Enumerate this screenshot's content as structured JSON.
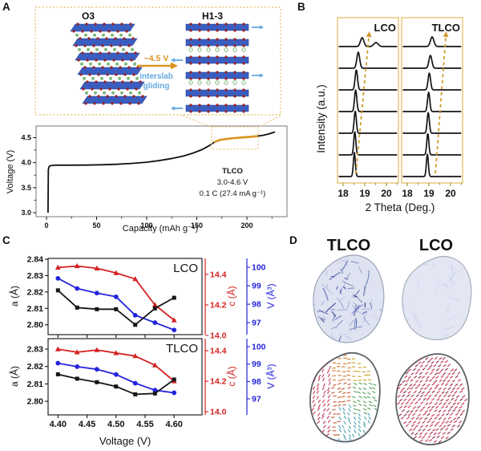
{
  "colors": {
    "accent_orange": "#d9931f",
    "dash_box_tan": "#e7c87c",
    "xrd_arrow_gold": "#cf9b2e",
    "slab_blue": "#3a5ec0",
    "slab_edge": "#26408f",
    "dot_red": "#9c1f1f",
    "dot_green": "#7db97d",
    "glide_blue": "#64a8e0",
    "series_black": "#161616",
    "series_red": "#d42222",
    "series_blue": "#2424dd",
    "map_fill_tlco": "#dfe3f1",
    "map_fill_lco": "#e3e6f3",
    "stripe_red": "#c22c50"
  },
  "panel_a": {
    "label": "A",
    "phase_left": "O3",
    "phase_right": "H1-3",
    "arrow_label": "~4.5 V",
    "glide_line1": "interslab",
    "glide_line2": "gliding"
  },
  "panel_b": {
    "label": "B"
  },
  "panel_c": {
    "label": "C"
  },
  "panel_d": {
    "label": "D",
    "left_title": "TLCO",
    "right_title": "LCO"
  },
  "chart_data": [
    {
      "id": "charge_curve",
      "panel": "A",
      "type": "line",
      "xlabel": "Capacity (mAh g⁻¹)",
      "ylabel": "Voltage (V)",
      "xlim": [
        -10.4,
        240
      ],
      "ylim": [
        2.92,
        4.81
      ],
      "xticks": [
        0,
        50,
        100,
        150,
        200
      ],
      "xtick_labels": [
        "0",
        "50",
        "100",
        "150",
        "200"
      ],
      "xticks_minor": [
        25,
        75,
        125,
        175,
        225
      ],
      "yticks": [
        3.0,
        3.5,
        4.0,
        4.5
      ],
      "ytick_labels": [
        "3.0",
        "3.5",
        "4.0",
        "4.5"
      ],
      "yticks_minor": [
        3.25,
        3.75,
        4.25
      ],
      "series": [
        {
          "name": "TLCO charge curve",
          "x": [
            1.5,
            1.8,
            2.5,
            4,
            8,
            15,
            25,
            40,
            55,
            70,
            85,
            100,
            112,
            124,
            136,
            146,
            155,
            162,
            168,
            173,
            180,
            188,
            196,
            204,
            210,
            216,
            222,
            228
          ],
          "y": [
            3.0,
            3.86,
            3.92,
            3.94,
            3.948,
            3.95,
            3.95,
            3.952,
            3.958,
            3.968,
            3.985,
            4.01,
            4.04,
            4.08,
            4.13,
            4.19,
            4.26,
            4.335,
            4.415,
            4.455,
            4.475,
            4.492,
            4.505,
            4.518,
            4.53,
            4.548,
            4.575,
            4.615
          ]
        }
      ],
      "highlight_x": [
        170,
        208
      ],
      "annotations": [
        "TLCO",
        "3.0-4.6 V",
        "0.1 C (27.4 mA g⁻¹)"
      ]
    },
    {
      "id": "xrd",
      "panel": "B",
      "type": "line",
      "xlabel": "2 Theta (Deg.)",
      "ylabel": "Intensity (a.u.)",
      "subpanels": [
        {
          "label": "LCO",
          "xticks": [
            18,
            19,
            20
          ],
          "xtick_labels": [
            "18",
            "19",
            "20"
          ],
          "curves_bottom_to_top": [
            {
              "peaks": [
                [
                  18.52,
                  30,
                  0.045
                ]
              ]
            },
            {
              "peaks": [
                [
                  18.54,
                  29,
                  0.047
                ]
              ]
            },
            {
              "peaks": [
                [
                  18.56,
                  28,
                  0.05
                ]
              ]
            },
            {
              "peaks": [
                [
                  18.58,
                  27,
                  0.052
                ]
              ]
            },
            {
              "peaks": [
                [
                  18.61,
                  25,
                  0.055
                ]
              ]
            },
            {
              "peaks": [
                [
                  18.7,
                  20,
                  0.065
                ]
              ]
            },
            {
              "peaks": [
                [
                  18.88,
                  11,
                  0.08
                ],
                [
                  19.52,
                  5,
                  0.1
                ]
              ]
            }
          ],
          "arrow_theta": [
            18.59,
            19.19
          ]
        },
        {
          "label": "TLCO",
          "xticks": [
            18,
            19,
            20
          ],
          "xtick_labels": [
            "18",
            "19",
            "20"
          ],
          "curves_bottom_to_top": [
            {
              "peaks": [
                [
                  18.93,
                  28,
                  0.045
                ]
              ]
            },
            {
              "peaks": [
                [
                  18.95,
                  27,
                  0.047
                ]
              ]
            },
            {
              "peaks": [
                [
                  18.97,
                  26,
                  0.05
                ]
              ]
            },
            {
              "peaks": [
                [
                  18.99,
                  24,
                  0.052
                ]
              ]
            },
            {
              "peaks": [
                [
                  19.02,
                  21,
                  0.057
                ]
              ]
            },
            {
              "peaks": [
                [
                  19.07,
                  16,
                  0.068
                ]
              ]
            },
            {
              "peaks": [
                [
                  19.15,
                  12,
                  0.08
                ]
              ]
            }
          ],
          "arrow_theta": [
            19.3,
            19.78
          ]
        }
      ]
    },
    {
      "id": "lattice_lco",
      "panel": "C",
      "type": "line",
      "title": "LCO",
      "x": [
        4.4,
        4.433,
        4.467,
        4.5,
        4.533,
        4.567,
        4.6
      ],
      "xlim": [
        4.383,
        4.648
      ],
      "series": [
        {
          "name": "a",
          "label": "a (Å)",
          "marker": "square",
          "color_key": "series_black",
          "values": [
            2.821,
            2.8105,
            2.8095,
            2.8095,
            2.8,
            2.81,
            2.8165
          ],
          "ylim": [
            2.794,
            2.8405
          ],
          "ticks": [
            2.8,
            2.81,
            2.82,
            2.83,
            2.84
          ],
          "tick_labels": [
            "2.80",
            "2.81",
            "2.82",
            "2.83",
            "2.84"
          ]
        },
        {
          "name": "c",
          "label": "c (Å)",
          "marker": "triangle",
          "color_key": "series_red",
          "values": [
            14.445,
            14.455,
            14.44,
            14.41,
            14.37,
            14.2,
            14.1
          ],
          "ylim": [
            14.005,
            14.505
          ],
          "ticks": [
            14.0,
            14.2,
            14.4
          ],
          "tick_labels": [
            "14.0",
            "14.2",
            "14.4"
          ]
        },
        {
          "name": "V",
          "label": "V (Å³)",
          "marker": "circle",
          "color_key": "series_blue",
          "values": [
            99.4,
            98.85,
            98.6,
            98.4,
            97.4,
            97.0,
            96.6
          ],
          "ylim": [
            96.35,
            100.48
          ],
          "ticks": [
            97,
            98,
            99,
            100
          ],
          "tick_labels": [
            "97",
            "98",
            "99",
            "100"
          ]
        }
      ]
    },
    {
      "id": "lattice_tlco",
      "panel": "C",
      "type": "line",
      "title": "TLCO",
      "xlabel": "Voltage (V)",
      "x": [
        4.4,
        4.433,
        4.467,
        4.5,
        4.533,
        4.567,
        4.6
      ],
      "xlim": [
        4.383,
        4.648
      ],
      "xticks": [
        4.4,
        4.45,
        4.5,
        4.55,
        4.6
      ],
      "xtick_labels": [
        "4.40",
        "4.45",
        "4.50",
        "4.55",
        "4.60"
      ],
      "series": [
        {
          "name": "a",
          "label": "a (Å)",
          "marker": "square",
          "color_key": "series_black",
          "values": [
            2.8155,
            2.813,
            2.811,
            2.8085,
            2.804,
            2.8045,
            2.8125
          ],
          "ylim": [
            2.7922,
            2.836
          ],
          "ticks": [
            2.8,
            2.81,
            2.82,
            2.83
          ],
          "tick_labels": [
            "2.80",
            "2.81",
            "2.82",
            "2.83"
          ]
        },
        {
          "name": "c",
          "label": "c (Å)",
          "marker": "triangle",
          "color_key": "series_red",
          "values": [
            14.41,
            14.39,
            14.405,
            14.385,
            14.365,
            14.305,
            14.2
          ],
          "ylim": [
            13.979,
            14.479
          ],
          "ticks": [
            14.0,
            14.2,
            14.4
          ],
          "tick_labels": [
            "14.0",
            "14.2",
            "14.4"
          ]
        },
        {
          "name": "V",
          "label": "V (Å³)",
          "marker": "circle",
          "color_key": "series_blue",
          "values": [
            99.05,
            98.85,
            98.7,
            98.4,
            97.9,
            97.5,
            97.35
          ],
          "ylim": [
            96.08,
            100.46
          ],
          "ticks": [
            97,
            98,
            99,
            100
          ],
          "tick_labels": [
            "97",
            "98",
            "99",
            "100"
          ]
        }
      ]
    }
  ]
}
